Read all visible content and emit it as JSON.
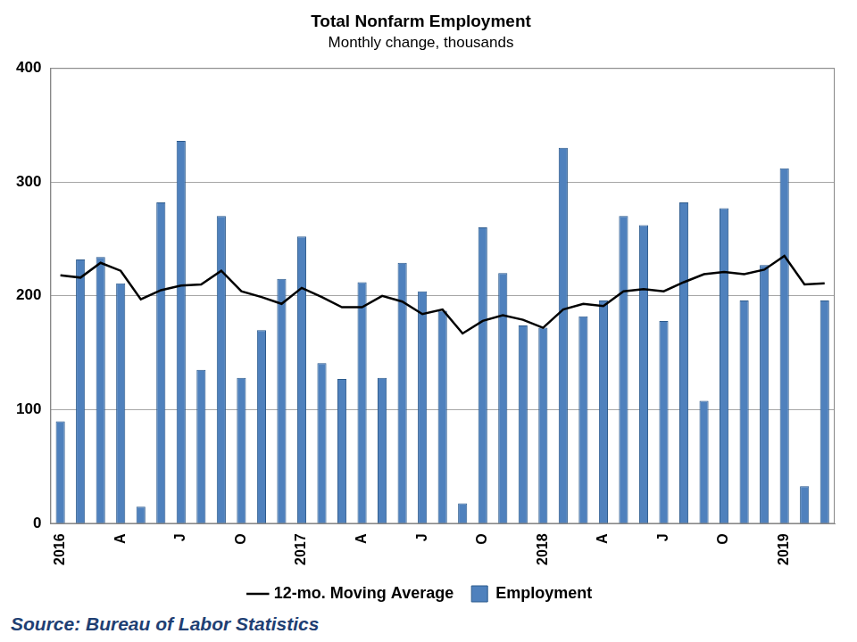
{
  "chart_data": {
    "type": "bar",
    "title": "Total Nonfarm Employment",
    "subtitle": "Monthly change, thousands",
    "source": "Source: Bureau of Labor Statistics",
    "categories": [
      "2016",
      null,
      null,
      "A",
      null,
      null,
      "J",
      null,
      null,
      "O",
      null,
      null,
      "2017",
      null,
      null,
      "A",
      null,
      null,
      "J",
      null,
      null,
      "O",
      null,
      null,
      "2018",
      null,
      null,
      "A",
      null,
      null,
      "J",
      null,
      null,
      "O",
      null,
      null,
      "2019",
      null,
      null
    ],
    "series": [
      {
        "name": "Employment",
        "type": "bar",
        "color": "#4f81bd",
        "values": [
          90,
          232,
          234,
          211,
          15,
          282,
          336,
          135,
          270,
          128,
          170,
          215,
          252,
          141,
          127,
          212,
          128,
          229,
          204,
          187,
          18,
          260,
          220,
          174,
          172,
          330,
          182,
          196,
          270,
          262,
          178,
          282,
          108,
          277,
          196,
          227,
          312,
          33,
          196
        ]
      },
      {
        "name": "12-mo. Moving Average",
        "type": "line",
        "color": "#000000",
        "values": [
          218,
          216,
          229,
          222,
          197,
          205,
          209,
          210,
          222,
          204,
          199,
          193,
          207,
          199,
          190,
          190,
          200,
          195,
          184,
          188,
          167,
          178,
          183,
          179,
          172,
          188,
          193,
          191,
          204,
          206,
          204,
          212,
          219,
          221,
          219,
          223,
          235,
          210,
          211
        ]
      }
    ],
    "ylim": [
      0,
      400
    ],
    "yticks": [
      0,
      100,
      200,
      300,
      400
    ],
    "grid": true,
    "legend": "bottom"
  }
}
